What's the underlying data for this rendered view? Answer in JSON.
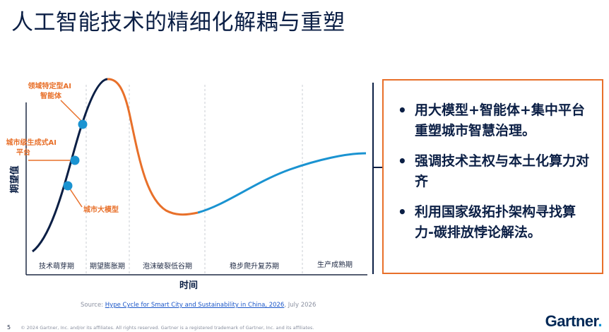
{
  "title": "人工智能技术的精细化解耦与重塑",
  "chart_data": {
    "type": "hype-cycle",
    "ylabel": "期望值",
    "xlabel": "时间",
    "phases": [
      "技术萌芽期",
      "期望膨胀期",
      "泡沫破裂低谷期",
      "稳步爬升复苏期",
      "生产成熟期"
    ],
    "points": [
      {
        "label": "领域特定型AI\n智能体"
      },
      {
        "label": "城市级生成式AI\n平台"
      },
      {
        "label": "城市大模型"
      }
    ],
    "colors": {
      "rise": "#0b1f45",
      "fall": "#e8702a",
      "recovery": "#1a93d1",
      "point": "#1a93d1",
      "label": "#e8702a"
    }
  },
  "bullets": [
    "用大模型+智能体+集中平台重塑城市智慧治理。",
    "强调技术主权与本土化算力对齐",
    "利用国家级拓扑架构寻找算力-碳排放悖论解法。"
  ],
  "source": {
    "prefix": "Source: ",
    "link_text": "Hype Cycle for Smart City and Sustainability in China, 2026",
    "suffix": ", July 2026"
  },
  "footer": {
    "page_number": "5",
    "copyright": "© 2024 Gartner, Inc. and/or its affiliates. All rights reserved. Gartner is a registered trademark of Gartner, Inc. and its affiliates."
  },
  "logo": {
    "text": "Gartner",
    "dot": "."
  }
}
